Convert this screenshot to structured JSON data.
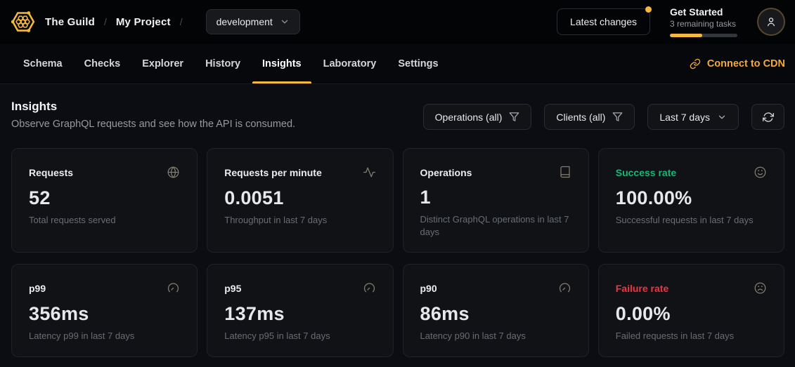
{
  "header": {
    "breadcrumb": {
      "org": "The Guild",
      "separator1": "/",
      "project": "My Project",
      "separator2": "/"
    },
    "environment_selector": {
      "value": "development"
    },
    "latest_changes_label": "Latest changes",
    "get_started": {
      "title": "Get Started",
      "subtitle": "3 remaining tasks",
      "progress_percent": 48
    }
  },
  "nav": {
    "tabs": [
      "Schema",
      "Checks",
      "Explorer",
      "History",
      "Insights",
      "Laboratory",
      "Settings"
    ],
    "active_tab": "Insights",
    "cdn_link_label": "Connect to CDN"
  },
  "page": {
    "title": "Insights",
    "subtitle": "Observe GraphQL requests and see how the API is consumed."
  },
  "filters": {
    "operations_label": "Operations (all)",
    "clients_label": "Clients (all)",
    "date_range_label": "Last 7 days"
  },
  "stat_cards": [
    {
      "title": "Requests",
      "value": "52",
      "subtitle": "Total requests served",
      "icon": "globe-icon",
      "title_color": "default"
    },
    {
      "title": "Requests per minute",
      "value": "0.0051",
      "subtitle": "Throughput in last 7 days",
      "icon": "activity-icon",
      "title_color": "default"
    },
    {
      "title": "Operations",
      "value": "1",
      "subtitle": "Distinct GraphQL operations in last 7 days",
      "icon": "book-icon",
      "title_color": "default"
    },
    {
      "title": "Success rate",
      "value": "100.00%",
      "subtitle": "Successful requests in last 7 days",
      "icon": "smile-icon",
      "title_color": "success"
    },
    {
      "title": "p99",
      "value": "356ms",
      "subtitle": "Latency p99 in last 7 days",
      "icon": "gauge-icon",
      "title_color": "default"
    },
    {
      "title": "p95",
      "value": "137ms",
      "subtitle": "Latency p95 in last 7 days",
      "icon": "gauge-icon",
      "title_color": "default"
    },
    {
      "title": "p90",
      "value": "86ms",
      "subtitle": "Latency p90 in last 7 days",
      "icon": "gauge-icon",
      "title_color": "default"
    },
    {
      "title": "Failure rate",
      "value": "0.00%",
      "subtitle": "Failed requests in last 7 days",
      "icon": "frown-icon",
      "title_color": "danger"
    }
  ],
  "colors": {
    "accent_yellow": "#f4b740",
    "success_green": "#17b877",
    "failure_red": "#ee3444",
    "card_background": "#101216",
    "card_border": "#1f2227"
  }
}
